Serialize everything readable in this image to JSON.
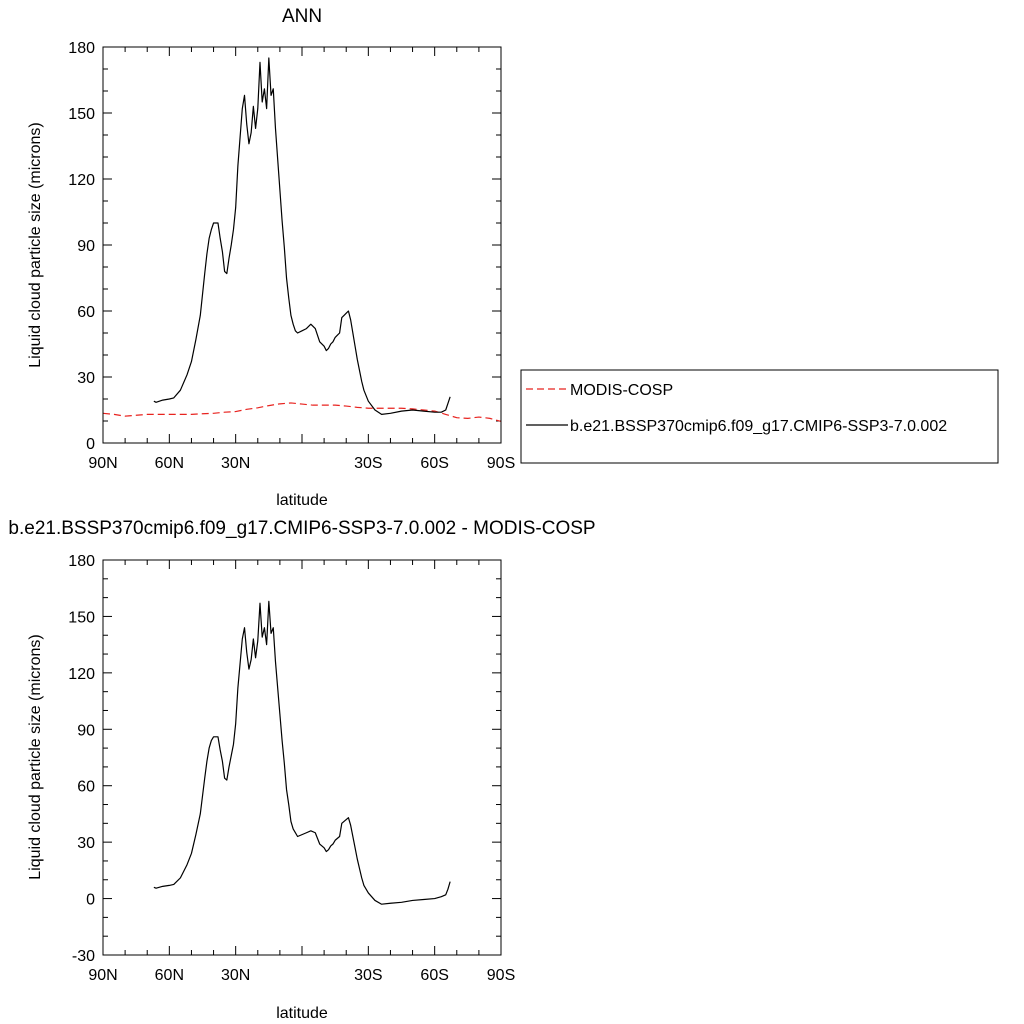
{
  "chart_data": [
    {
      "type": "line",
      "title": "ANN",
      "xlabel": "latitude",
      "ylabel": "Liquid cloud particle size (microns)",
      "xlim": [
        90,
        -90
      ],
      "ylim": [
        0,
        180
      ],
      "x_ticks": [
        90,
        60,
        30,
        0,
        -30,
        -60,
        -90
      ],
      "x_tick_labels": [
        "90N",
        "60N",
        "30N",
        "",
        "30S",
        "60S",
        "90S"
      ],
      "y_ticks": [
        0,
        30,
        60,
        90,
        120,
        150,
        180
      ],
      "y_tick_labels": [
        "0",
        "30",
        "60",
        "90",
        "120",
        "150",
        "180"
      ],
      "legend": {
        "placement": "right",
        "entries": [
          "MODIS-COSP",
          "b.e21.BSSP370cmip6.f09_g17.CMIP6-SSP3-7.0.002"
        ]
      },
      "series": [
        {
          "name": "MODIS-COSP",
          "color": "#e8231f",
          "dash": "dashed",
          "x": [
            90,
            85,
            80,
            75,
            70,
            65,
            60,
            55,
            50,
            45,
            40,
            35,
            30,
            25,
            20,
            15,
            10,
            5,
            0,
            -5,
            -10,
            -15,
            -20,
            -25,
            -30,
            -35,
            -40,
            -45,
            -50,
            -55,
            -60,
            -65,
            -70,
            -75,
            -80,
            -85,
            -90
          ],
          "y": [
            13.5,
            13,
            12.2,
            12.6,
            13,
            13,
            13,
            13,
            13,
            13.3,
            13.5,
            14,
            14.3,
            15.3,
            16,
            17,
            17.8,
            18.2,
            17.7,
            17.2,
            17.2,
            17.2,
            16.8,
            16.2,
            15.8,
            15.8,
            15.8,
            15.8,
            15.5,
            15,
            14.5,
            13,
            11.5,
            11.2,
            11.8,
            11.2,
            9.8
          ]
        },
        {
          "name": "b.e21.BSSP370cmip6.f09_g17.CMIP6-SSP3-7.0.002",
          "color": "#000000",
          "dash": "solid",
          "x": [
            67,
            66,
            63,
            60,
            58,
            55,
            52,
            50,
            48,
            46,
            44,
            43,
            42,
            41,
            40,
            39,
            38,
            37,
            36,
            35,
            34,
            33,
            32,
            31,
            30,
            29,
            28,
            27,
            26,
            25,
            24,
            23,
            22,
            21,
            20,
            19,
            18,
            17,
            16,
            15,
            14,
            13,
            12,
            11,
            10,
            9,
            8,
            7,
            6,
            5,
            4,
            3,
            2,
            0,
            -2,
            -4,
            -6,
            -7,
            -8,
            -10,
            -11,
            -12,
            -13,
            -14,
            -15,
            -16,
            -17,
            -18,
            -19,
            -20,
            -21,
            -22,
            -23,
            -24,
            -25,
            -26,
            -27,
            -28,
            -30,
            -33,
            -36,
            -40,
            -45,
            -50,
            -55,
            -60,
            -63,
            -65,
            -66,
            -67
          ],
          "y": [
            19,
            18.5,
            19.5,
            20,
            20.5,
            24,
            31,
            37,
            47,
            58,
            77,
            86,
            93,
            97,
            100,
            100,
            100,
            93,
            87,
            78,
            77,
            84,
            90,
            97,
            107,
            126,
            139,
            152,
            158,
            145,
            136,
            141,
            153,
            143,
            152,
            173,
            155,
            161,
            152,
            175,
            158,
            161,
            143,
            129,
            115,
            101,
            89,
            75,
            66,
            58,
            54,
            51,
            50,
            51,
            52,
            54,
            52,
            49,
            46,
            44,
            42,
            43,
            45,
            46,
            48,
            49,
            50,
            57,
            58,
            59,
            60,
            56,
            50,
            44,
            38,
            33,
            28,
            24,
            19,
            15,
            13,
            13.5,
            14.5,
            15,
            14.5,
            14,
            14,
            15,
            18,
            21
          ]
        }
      ]
    },
    {
      "type": "line",
      "title": "b.e21.BSSP370cmip6.f09_g17.CMIP6-SSP3-7.0.002 - MODIS-COSP",
      "xlabel": "latitude",
      "ylabel": "Liquid cloud particle size (microns)",
      "xlim": [
        90,
        -90
      ],
      "ylim": [
        -30,
        180
      ],
      "x_ticks": [
        90,
        60,
        30,
        0,
        -30,
        -60,
        -90
      ],
      "x_tick_labels": [
        "90N",
        "60N",
        "30N",
        "",
        "30S",
        "60S",
        "90S"
      ],
      "y_ticks": [
        -30,
        0,
        30,
        60,
        90,
        120,
        150,
        180
      ],
      "y_tick_labels": [
        "-30",
        "0",
        "30",
        "60",
        "90",
        "120",
        "150",
        "180"
      ],
      "series": [
        {
          "color": "#000000",
          "dash": "solid",
          "x": [
            67,
            66,
            63,
            60,
            58,
            55,
            52,
            50,
            48,
            46,
            44,
            43,
            42,
            41,
            40,
            39,
            38,
            37,
            36,
            35,
            34,
            33,
            32,
            31,
            30,
            29,
            28,
            27,
            26,
            25,
            24,
            23,
            22,
            21,
            20,
            19,
            18,
            17,
            16,
            15,
            14,
            13,
            12,
            11,
            10,
            9,
            8,
            7,
            6,
            5,
            4,
            3,
            2,
            0,
            -2,
            -4,
            -6,
            -7,
            -8,
            -10,
            -11,
            -12,
            -13,
            -14,
            -15,
            -16,
            -17,
            -18,
            -19,
            -20,
            -21,
            -22,
            -23,
            -24,
            -25,
            -26,
            -27,
            -28,
            -30,
            -33,
            -36,
            -40,
            -45,
            -50,
            -55,
            -60,
            -63,
            -65,
            -66,
            -67
          ],
          "y": [
            6,
            5.5,
            6.5,
            7,
            7.5,
            11,
            18,
            24,
            34,
            45,
            64,
            73,
            80,
            84,
            86,
            86,
            86,
            79,
            73,
            64,
            63,
            70,
            76,
            82,
            93,
            112,
            125,
            138,
            144,
            131,
            122,
            127,
            138,
            128,
            137,
            157,
            139,
            144,
            135,
            158,
            141,
            144,
            126,
            112,
            98,
            84,
            72,
            58,
            50,
            41,
            37,
            35,
            33,
            34,
            35,
            36,
            35,
            32,
            29,
            27,
            25,
            26,
            28,
            29,
            31,
            32,
            33,
            40,
            41,
            42,
            43,
            39,
            33,
            27,
            21,
            16,
            11,
            7,
            3,
            -1,
            -3,
            -2.5,
            -2,
            -1,
            -0.5,
            0,
            1,
            2,
            5,
            9
          ]
        }
      ]
    }
  ]
}
